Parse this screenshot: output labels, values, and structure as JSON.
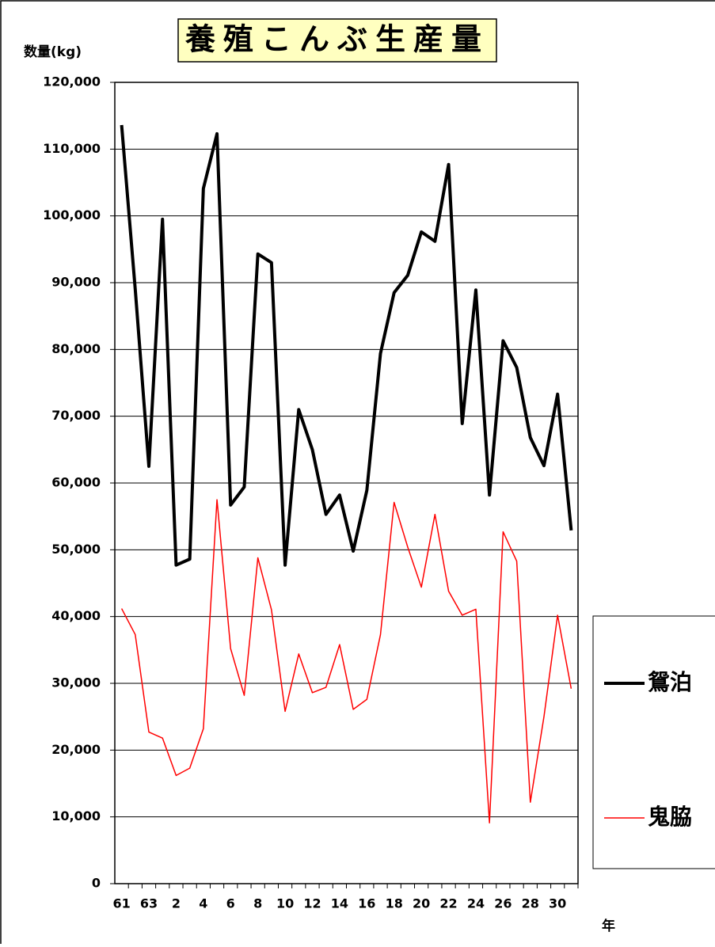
{
  "chart_data": {
    "type": "line",
    "title": "養殖こんぶ生産量",
    "y_label": "数量(kg)",
    "x_label": "年",
    "categories": [
      "61",
      null,
      "63",
      null,
      "2",
      null,
      "4",
      null,
      "6",
      null,
      "8",
      null,
      "10",
      null,
      "12",
      null,
      "14",
      null,
      "16",
      null,
      "18",
      null,
      "20",
      null,
      "22",
      null,
      "24",
      null,
      "26",
      null,
      "28",
      null,
      "30",
      null
    ],
    "series": [
      {
        "name": "鴛泊",
        "color": "#000000",
        "values": [
          113600,
          89000,
          62500,
          99500,
          47700,
          48600,
          104100,
          112300,
          56700,
          59400,
          94300,
          93000,
          47700,
          71000,
          65000,
          55300,
          58200,
          49800,
          58900,
          79400,
          88500,
          91100,
          97600,
          96200,
          107700,
          68900,
          88900,
          58200,
          81300,
          77300,
          66800,
          62600,
          73300,
          52900
        ]
      },
      {
        "name": "鬼脇",
        "color": "#ff0000",
        "values": [
          41200,
          37300,
          22700,
          21800,
          16200,
          17300,
          23200,
          57500,
          35200,
          28200,
          48800,
          41000,
          25800,
          34400,
          28600,
          29400,
          35800,
          26100,
          27600,
          37300,
          57100,
          50400,
          44400,
          55300,
          43800,
          40200,
          41100,
          9100,
          52700,
          48300,
          12200,
          25000,
          40200,
          29200
        ]
      }
    ],
    "ylim": [
      0,
      120000
    ],
    "yticks": [
      0,
      {
        "value": 10000,
        "label": "10,000"
      },
      {
        "value": 20000,
        "label": "20,000"
      },
      {
        "value": 30000,
        "label": "30,000"
      },
      {
        "value": 40000,
        "label": "40,000"
      },
      {
        "value": 50000,
        "label": "50,000"
      },
      {
        "value": 60000,
        "label": "60,000"
      },
      {
        "value": 70000,
        "label": "70,000"
      },
      {
        "value": 80000,
        "label": "80,000"
      },
      {
        "value": 90000,
        "label": "90,000"
      },
      {
        "value": 100000,
        "label": "100,000"
      },
      {
        "value": 110000,
        "label": "110,000"
      },
      {
        "value": 120000,
        "label": "120,000"
      }
    ],
    "grid": true,
    "legend": "right"
  }
}
